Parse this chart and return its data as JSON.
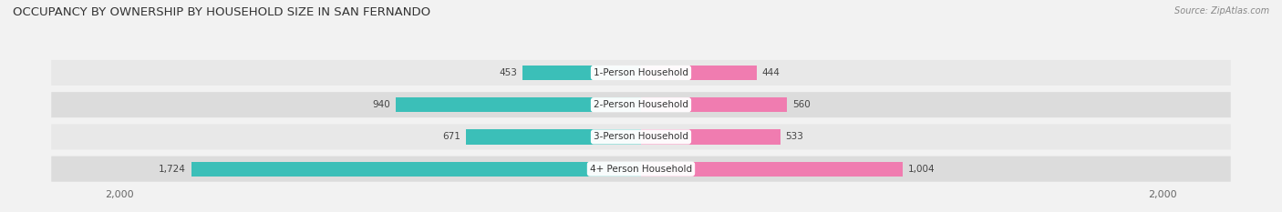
{
  "title": "OCCUPANCY BY OWNERSHIP BY HOUSEHOLD SIZE IN SAN FERNANDO",
  "source": "Source: ZipAtlas.com",
  "categories": [
    "4+ Person Household",
    "3-Person Household",
    "2-Person Household",
    "1-Person Household"
  ],
  "owner_values": [
    1724,
    671,
    940,
    453
  ],
  "renter_values": [
    1004,
    533,
    560,
    444
  ],
  "max_val": 2000,
  "owner_color": "#3BBFB8",
  "renter_color": "#F07CB0",
  "bg_color": "#F2F2F2",
  "row_colors": [
    "#E0E0E0",
    "#E8E8E8",
    "#E0E0E0",
    "#E8E8E8"
  ],
  "label_color": "#444444",
  "axis_label_color": "#666666",
  "title_fontsize": 9.5,
  "bar_label_fontsize": 7.5,
  "legend_fontsize": 8,
  "category_fontsize": 7.5,
  "source_fontsize": 7
}
